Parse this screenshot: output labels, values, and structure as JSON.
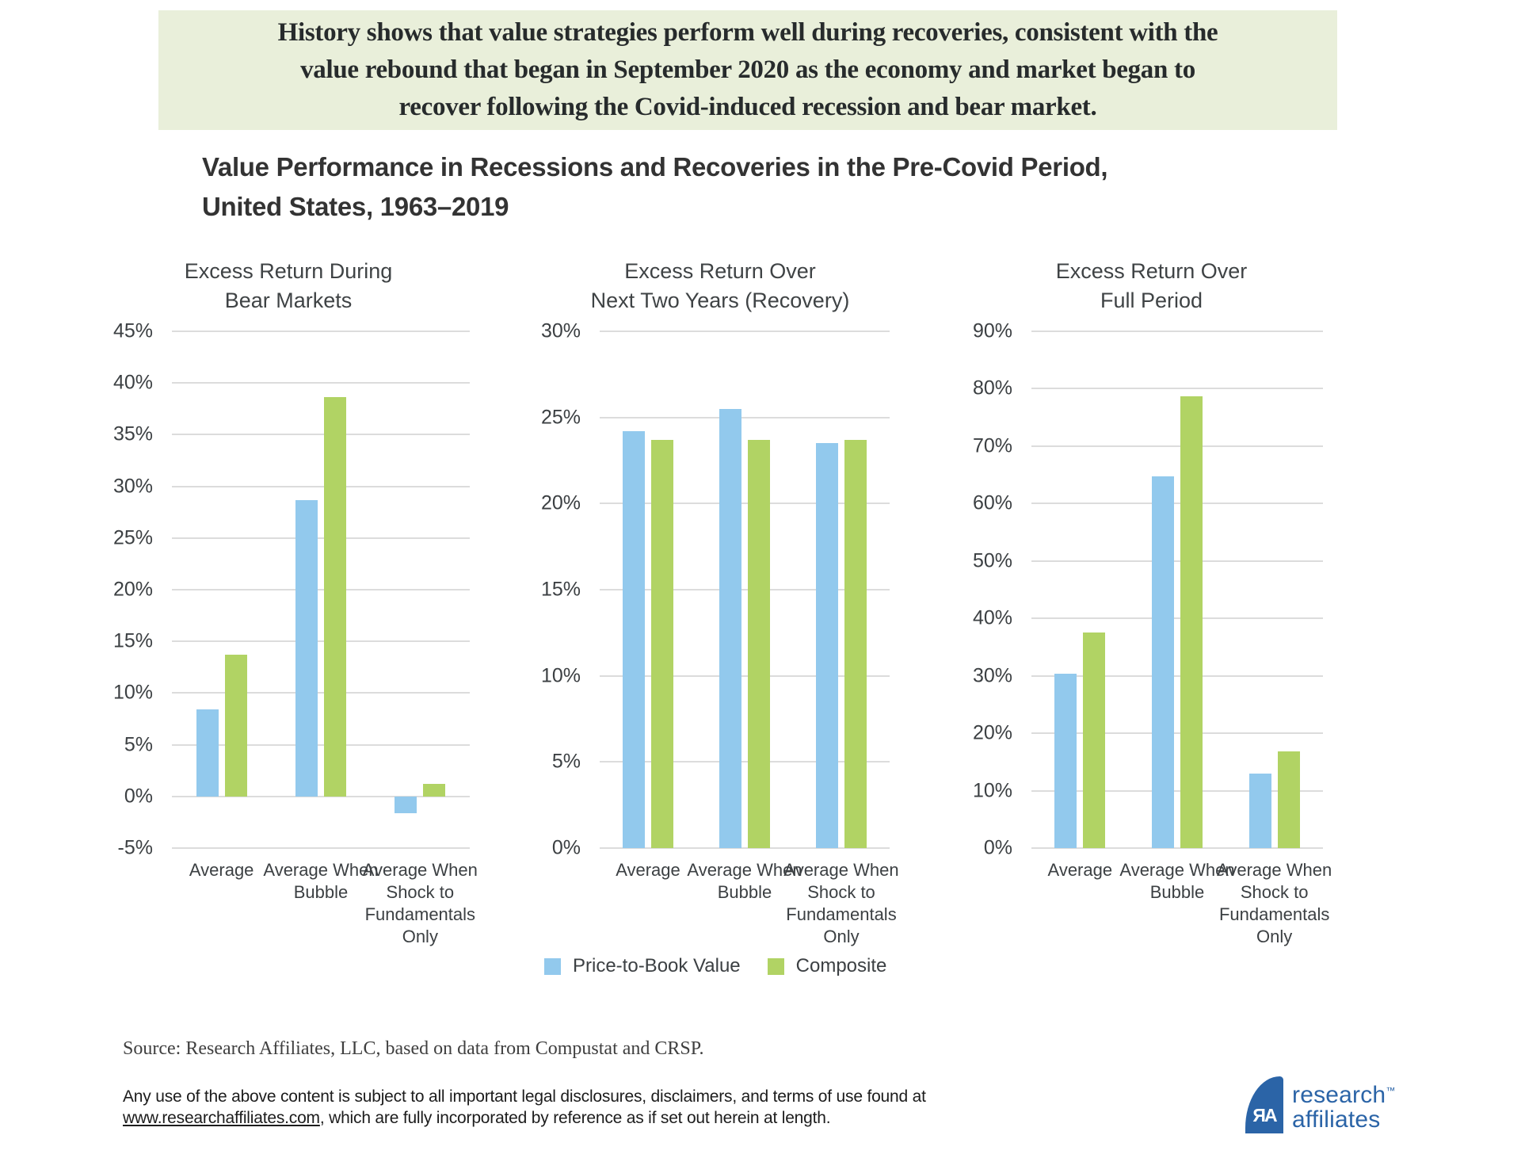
{
  "banner": {
    "bg_color": "#e9efda",
    "lines": [
      "History shows that value strategies perform well during recoveries, consistent with the",
      "value rebound that began in September 2020 as the economy and market began to",
      "recover following the Covid-induced recession and bear market."
    ]
  },
  "main_title": {
    "line1": "Value Performance in Recessions and Recoveries in the Pre-Covid Period,",
    "line2": "United States, 1963–2019"
  },
  "legend": [
    {
      "label": "Price-to-Book Value",
      "color": "#92c9ed"
    },
    {
      "label": "Composite",
      "color": "#b1d364"
    }
  ],
  "source_text": "Source: Research Affiliates, LLC, based on data from Compustat and CRSP.",
  "footer": {
    "text_before": "Any use of the above content is subject to all important legal disclosures, disclaimers, and terms of use found at ",
    "link": "www.researchaffiliates.com",
    "text_after": ", which are fully incorporated by reference as if set out herein at length."
  },
  "logo": {
    "monogram": "ЯA",
    "line1": "research",
    "tm": "™",
    "line2": "affiliates",
    "color": "#2b64a7"
  },
  "chart_data": [
    {
      "type": "bar",
      "title_line1": "Excess Return During",
      "title_line2": "Bear Markets",
      "categories": [
        "Average",
        "Average When Bubble",
        "Average When Shock to Fundamentals Only"
      ],
      "series": [
        {
          "name": "Price-to-Book Value",
          "color": "#92c9ed",
          "values": [
            8.4,
            28.7,
            -1.6
          ]
        },
        {
          "name": "Composite",
          "color": "#b1d364",
          "values": [
            13.7,
            38.6,
            1.2
          ]
        }
      ],
      "ylim": [
        -5,
        45
      ],
      "ytick_step": 5,
      "unit": "%",
      "grid": true,
      "legend_position": "bottom-center"
    },
    {
      "type": "bar",
      "title_line1": "Excess Return Over",
      "title_line2": "Next Two Years (Recovery)",
      "categories": [
        "Average",
        "Average When Bubble",
        "Average When Shock to Fundamentals Only"
      ],
      "series": [
        {
          "name": "Price-to-Book Value",
          "color": "#92c9ed",
          "values": [
            24.2,
            25.5,
            23.5
          ]
        },
        {
          "name": "Composite",
          "color": "#b1d364",
          "values": [
            23.7,
            23.7,
            23.7
          ]
        }
      ],
      "ylim": [
        0,
        30
      ],
      "ytick_step": 5,
      "unit": "%",
      "grid": true,
      "legend_position": "bottom-center"
    },
    {
      "type": "bar",
      "title_line1": "Excess Return Over",
      "title_line2": "Full Period",
      "categories": [
        "Average",
        "Average When Bubble",
        "Average When Shock to Fundamentals Only"
      ],
      "series": [
        {
          "name": "Price-to-Book Value",
          "color": "#92c9ed",
          "values": [
            30.3,
            64.8,
            13.0
          ]
        },
        {
          "name": "Composite",
          "color": "#b1d364",
          "values": [
            37.6,
            78.7,
            16.9
          ]
        }
      ],
      "ylim": [
        0,
        90
      ],
      "ytick_step": 10,
      "unit": "%",
      "grid": true,
      "legend_position": "bottom-center"
    }
  ]
}
